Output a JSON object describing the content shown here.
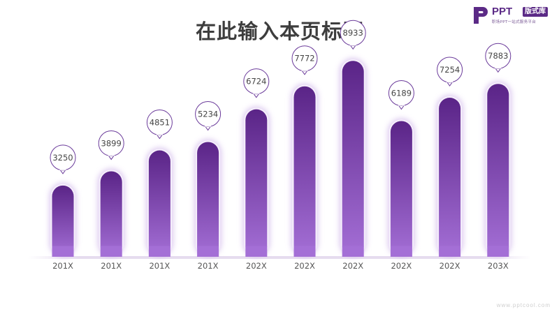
{
  "title": "在此输入本页标题",
  "logo": {
    "brand": "PPT",
    "badge": "版式库",
    "tagline": "职场PPT一站式服务平台"
  },
  "footer": "www.pptcool.com",
  "colors": {
    "bar_top": "#5a2487",
    "bar_bottom": "#a46fd6",
    "glow": "#d9c4ee",
    "bubble_stroke": "#6a3a9a",
    "label": "#555555"
  },
  "chart_data": {
    "type": "bar",
    "title": "",
    "xlabel": "",
    "ylabel": "",
    "categories": [
      "201X",
      "201X",
      "201X",
      "201X",
      "202X",
      "202X",
      "202X",
      "202X",
      "202X",
      "203X"
    ],
    "values": [
      3250,
      3899,
      4851,
      5234,
      6724,
      7772,
      8933,
      6189,
      7254,
      7883
    ],
    "ylim": [
      0,
      9800
    ],
    "grid": false,
    "legend": "none"
  }
}
